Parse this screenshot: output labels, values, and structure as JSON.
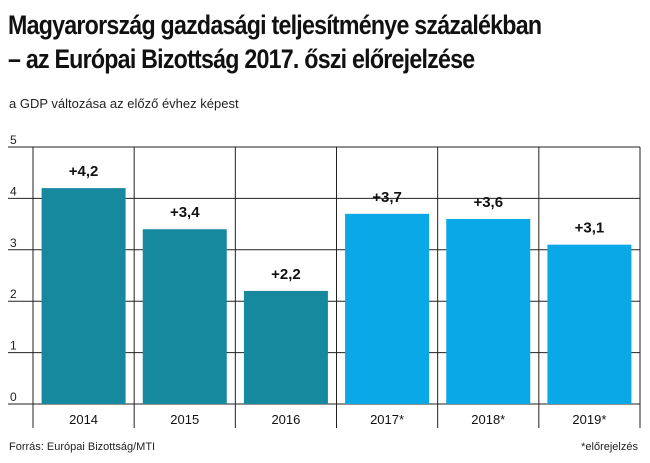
{
  "title_line1": "Magyarország gazdasági teljesítménye százalékban",
  "title_line2": "– az Európai Bizottság 2017. őszi előrejelzése",
  "subtitle": "a GDP változása az előző évhez képest",
  "source": "Forrás: Európai Bizottság/MTI",
  "footnote": "*előrejelzés",
  "colors": {
    "actual": "#17899f",
    "forecast": "#0aa8e6",
    "grid": "#222222"
  },
  "chart_data": {
    "type": "bar",
    "categories": [
      "2014",
      "2015",
      "2016",
      "2017*",
      "2018*",
      "2019*"
    ],
    "values": [
      4.2,
      3.4,
      2.2,
      3.7,
      3.6,
      3.1
    ],
    "data_labels": [
      "+4,2",
      "+3,4",
      "+2,2",
      "+3,7",
      "+3,6",
      "+3,1"
    ],
    "forecast": [
      false,
      false,
      false,
      true,
      true,
      true
    ],
    "y_ticks": [
      "0",
      "1",
      "2",
      "3",
      "4",
      "5"
    ],
    "ylim": [
      0,
      5
    ],
    "grid": true
  }
}
